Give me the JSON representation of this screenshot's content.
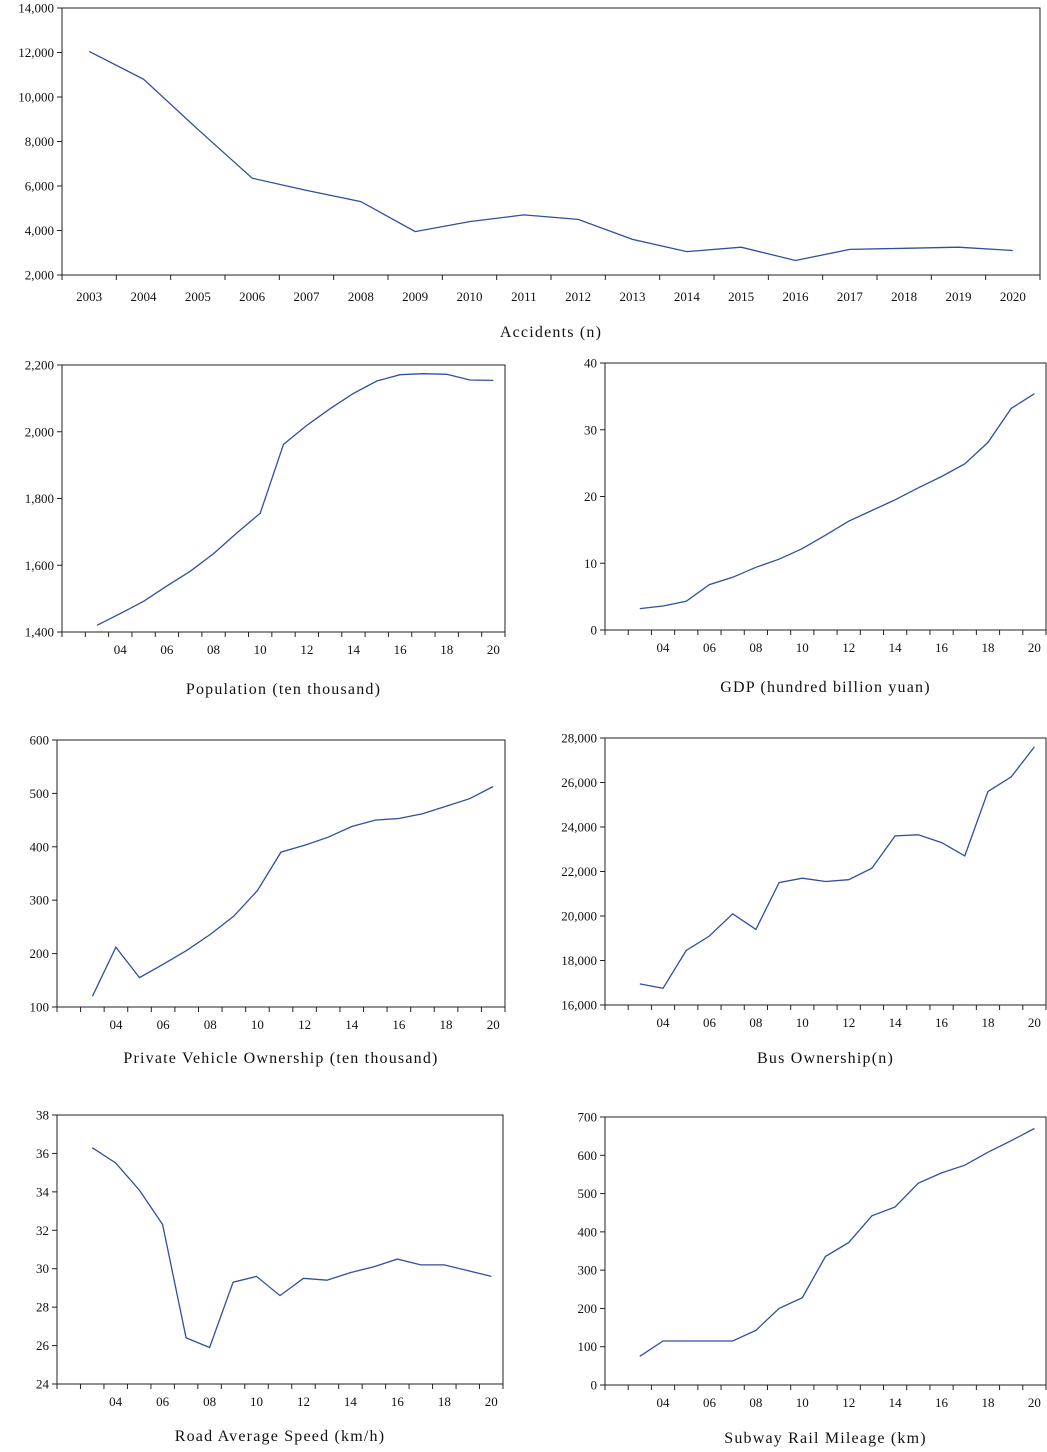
{
  "chart_data": [
    {
      "type": "line",
      "xlabel": "Accidents (n)",
      "x": [
        "2003",
        "2004",
        "2005",
        "2006",
        "2007",
        "2008",
        "2009",
        "2010",
        "2011",
        "2012",
        "2013",
        "2014",
        "2015",
        "2016",
        "2017",
        "2018",
        "2019",
        "2020"
      ],
      "series": [
        {
          "values": [
            12050,
            10800,
            8550,
            6350,
            5800,
            5300,
            3950,
            4400,
            4700,
            4500,
            3600,
            3050,
            3250,
            2650,
            3150,
            3200,
            3250,
            3100
          ]
        }
      ],
      "ylim": [
        2000,
        14000
      ],
      "yticks": [
        "2,000",
        "4,000",
        "6,000",
        "8,000",
        "10,000",
        "12,000",
        "14,000"
      ],
      "xticks": [
        "2003",
        "2004",
        "2005",
        "2006",
        "2007",
        "2008",
        "2009",
        "2010",
        "2011",
        "2012",
        "2013",
        "2014",
        "2015",
        "2016",
        "2017",
        "2018",
        "2019",
        "2020"
      ]
    },
    {
      "type": "line",
      "xlabel": "Population (ten thousand)",
      "x": [
        3,
        4,
        5,
        6,
        7,
        8,
        9,
        10,
        11,
        12,
        13,
        14,
        15,
        16,
        17,
        18,
        19,
        20
      ],
      "series": [
        {
          "values": [
            1420,
            1455,
            1492,
            1538,
            1582,
            1635,
            1697,
            1756,
            1962,
            2019,
            2069,
            2115,
            2152,
            2171,
            2174,
            2172,
            2155,
            2154
          ]
        }
      ],
      "ylim": [
        1400,
        2200
      ],
      "yticks": [
        "1,400",
        "1,600",
        "1,800",
        "2,000",
        "2,200"
      ],
      "xticks": [
        "04",
        "06",
        "08",
        "10",
        "12",
        "14",
        "16",
        "18",
        "20"
      ]
    },
    {
      "type": "line",
      "xlabel": "GDP (hundred billion yuan)",
      "x": [
        3,
        4,
        5,
        6,
        7,
        8,
        9,
        10,
        11,
        12,
        13,
        14,
        15,
        16,
        17,
        18,
        19,
        20
      ],
      "series": [
        {
          "values": [
            3.2,
            3.6,
            4.3,
            6.8,
            7.9,
            9.4,
            10.6,
            12.2,
            14.2,
            16.3,
            17.9,
            19.5,
            21.3,
            23.0,
            24.9,
            28.1,
            33.2,
            35.4
          ]
        }
      ],
      "ylim": [
        0,
        40
      ],
      "yticks": [
        "0",
        "10",
        "20",
        "30",
        "40"
      ],
      "xticks": [
        "04",
        "06",
        "08",
        "10",
        "12",
        "14",
        "16",
        "18",
        "20"
      ]
    },
    {
      "type": "line",
      "xlabel": "Private Vehicle Ownership (ten thousand)",
      "x": [
        3,
        4,
        5,
        6,
        7,
        8,
        9,
        10,
        11,
        12,
        13,
        14,
        15,
        16,
        17,
        18,
        19,
        20
      ],
      "series": [
        {
          "values": [
            120,
            212,
            155,
            180,
            206,
            236,
            270,
            318,
            390,
            403,
            418,
            438,
            450,
            453,
            462,
            476,
            490,
            513
          ]
        }
      ],
      "ylim": [
        100,
        600
      ],
      "yticks": [
        "100",
        "200",
        "300",
        "400",
        "500",
        "600"
      ],
      "xticks": [
        "04",
        "06",
        "08",
        "10",
        "12",
        "14",
        "16",
        "18",
        "20"
      ]
    },
    {
      "type": "line",
      "xlabel": "Bus Ownership(n)",
      "x": [
        3,
        4,
        5,
        6,
        7,
        8,
        9,
        10,
        11,
        12,
        13,
        14,
        15,
        16,
        17,
        18,
        19,
        20
      ],
      "series": [
        {
          "values": [
            16950,
            16750,
            18450,
            19100,
            20100,
            19400,
            21500,
            21700,
            21550,
            21630,
            22150,
            23600,
            23650,
            23300,
            22700,
            25600,
            26250,
            27600
          ]
        }
      ],
      "ylim": [
        16000,
        28000
      ],
      "yticks": [
        "16,000",
        "18,000",
        "20,000",
        "22,000",
        "24,000",
        "26,000",
        "28,000"
      ],
      "xticks": [
        "04",
        "06",
        "08",
        "10",
        "12",
        "14",
        "16",
        "18",
        "20"
      ]
    },
    {
      "type": "line",
      "xlabel": "Road Average Speed (km/h)",
      "x": [
        3,
        4,
        5,
        6,
        7,
        8,
        9,
        10,
        11,
        12,
        13,
        14,
        15,
        16,
        17,
        18,
        19,
        20
      ],
      "series": [
        {
          "values": [
            36.3,
            35.5,
            34.1,
            32.3,
            26.4,
            25.9,
            29.3,
            29.6,
            28.6,
            29.5,
            29.4,
            29.8,
            30.1,
            30.5,
            30.2,
            30.2,
            29.9,
            29.6
          ]
        }
      ],
      "ylim": [
        24,
        38
      ],
      "yticks": [
        "24",
        "26",
        "28",
        "30",
        "32",
        "34",
        "36",
        "38"
      ],
      "xticks": [
        "04",
        "06",
        "08",
        "10",
        "12",
        "14",
        "16",
        "18",
        "20"
      ]
    },
    {
      "type": "line",
      "xlabel": "Subway Rail Mileage (km)",
      "x": [
        3,
        4,
        5,
        6,
        7,
        8,
        9,
        10,
        11,
        12,
        13,
        14,
        15,
        16,
        17,
        18,
        19,
        20
      ],
      "series": [
        {
          "values": [
            75,
            115,
            115,
            115,
            115,
            143,
            200,
            228,
            336,
            372,
            442,
            465,
            527,
            554,
            574,
            608,
            638,
            670
          ]
        }
      ],
      "ylim": [
        0,
        700
      ],
      "yticks": [
        "0",
        "100",
        "200",
        "300",
        "400",
        "500",
        "600",
        "700"
      ],
      "xticks": [
        "04",
        "06",
        "08",
        "10",
        "12",
        "14",
        "16",
        "18",
        "20"
      ]
    }
  ]
}
